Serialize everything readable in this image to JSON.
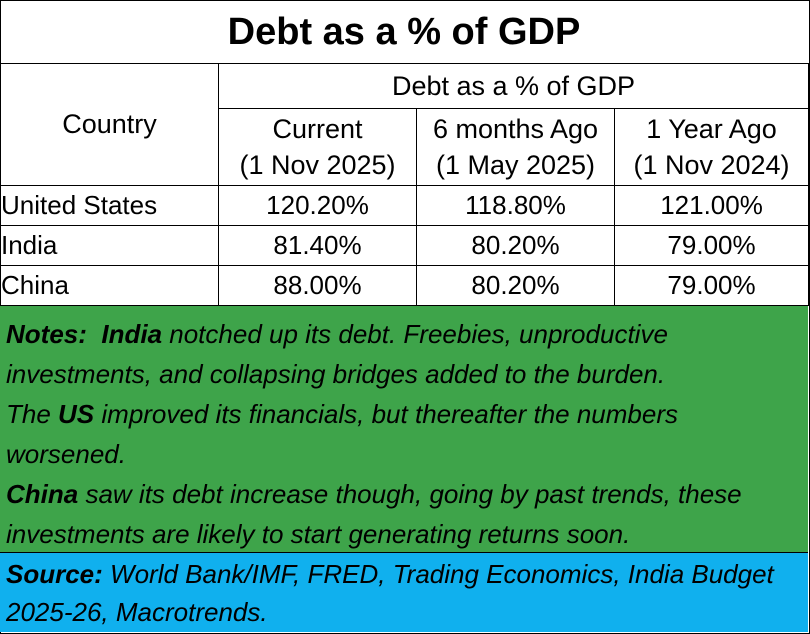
{
  "title": "Debt as a % of GDP",
  "chart_data": {
    "type": "table",
    "title": "Debt as a % of GDP",
    "row_header": "Country",
    "column_group": "Debt as a % of GDP",
    "columns": [
      {
        "name": "Current",
        "date": "(1 Nov 2025)"
      },
      {
        "name": "6 months Ago",
        "date": "(1 May 2025)"
      },
      {
        "name": "1 Year Ago",
        "date": "(1 Nov 2024)"
      }
    ],
    "rows": [
      {
        "country": "United States",
        "values": [
          "120.20%",
          "118.80%",
          "121.00%"
        ]
      },
      {
        "country": "India",
        "values": [
          "81.40%",
          "80.20%",
          "79.00%"
        ]
      },
      {
        "country": "China",
        "values": [
          "88.00%",
          "80.20%",
          "79.00%"
        ]
      }
    ]
  },
  "notes": {
    "label": "Notes:",
    "line1_subject": "India",
    "line1_text": " notched up its debt.  Freebies, unproductive investments, and collapsing bridges added to the burden.",
    "line2_prefix": "The ",
    "line2_subject": "US",
    "line2_text": " improved its financials, but thereafter the numbers worsened.",
    "line3_subject": "China",
    "line3_text": " saw its debt increase though, going by past trends, these investments are likely to start generating returns soon."
  },
  "source": {
    "label": "Source:",
    "text": "  World Bank/IMF, FRED, Trading Economics, India Budget 2025-26, Macrotrends."
  },
  "colors": {
    "notes_bg": "#3ea44a",
    "source_bg": "#10b0ee"
  }
}
